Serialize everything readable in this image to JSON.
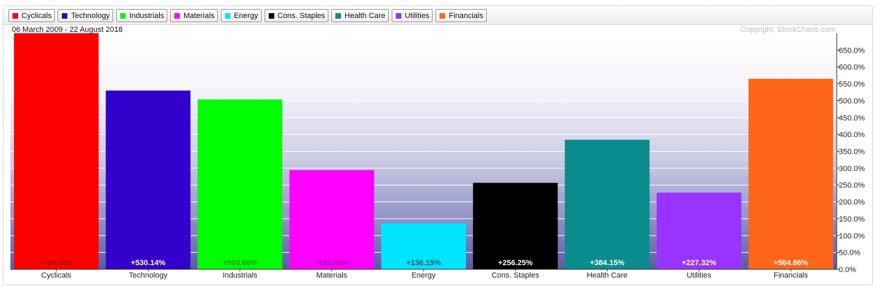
{
  "chart_data": {
    "type": "bar",
    "subtitle": "06 March 2009 - 22 August 2018",
    "credit": "Copyright, StockCharts.com",
    "categories": [
      "Cyclicals",
      "Technology",
      "Industrials",
      "Materials",
      "Energy",
      "Cons. Staples",
      "Health Care",
      "Utilities",
      "Financials"
    ],
    "values": [
      704.23,
      530.14,
      503.66,
      294.38,
      136.15,
      256.25,
      384.15,
      227.32,
      564.86
    ],
    "value_labels": [
      "+704.23%",
      "+530.14%",
      "+503.66%",
      "+294.38%",
      "+136.15%",
      "+256.25%",
      "+384.15%",
      "+227.32%",
      "+564.86%"
    ],
    "colors": [
      "#ff0000",
      "#3300cc",
      "#00ff00",
      "#ff00ff",
      "#00e5ff",
      "#000000",
      "#0a8c8c",
      "#9933ff",
      "#ff6619"
    ],
    "value_label_colors": [
      "#aa0000",
      "#ffffff",
      "#119911",
      "#aa00aa",
      "#005566",
      "#ffffff",
      "#ffffff",
      "#ffffff",
      "#ffffff"
    ],
    "ylim": [
      0,
      700
    ],
    "ytick_values": [
      0,
      50,
      100,
      150,
      200,
      250,
      300,
      350,
      400,
      450,
      500,
      550,
      600,
      650
    ],
    "ytick_labels": [
      "0.0%",
      "50.0%",
      "100.0%",
      "150.0%",
      "200.0%",
      "250.0%",
      "300.0%",
      "350.0%",
      "400.0%",
      "450.0%",
      "500.0%",
      "550.0%",
      "600.0%",
      "650.0%"
    ],
    "grid": true,
    "legend_position": "top"
  },
  "legend": {
    "items": [
      {
        "label": "Cyclicals",
        "color": "#ff0000"
      },
      {
        "label": "Technology",
        "color": "#3300cc"
      },
      {
        "label": "Industrials",
        "color": "#00ff00"
      },
      {
        "label": "Materials",
        "color": "#ff00ff"
      },
      {
        "label": "Energy",
        "color": "#00e5ff"
      },
      {
        "label": "Cons. Staples",
        "color": "#000000"
      },
      {
        "label": "Health Care",
        "color": "#0a8c8c"
      },
      {
        "label": "Utilities",
        "color": "#9933ff"
      },
      {
        "label": "Financials",
        "color": "#ff6619"
      }
    ]
  }
}
